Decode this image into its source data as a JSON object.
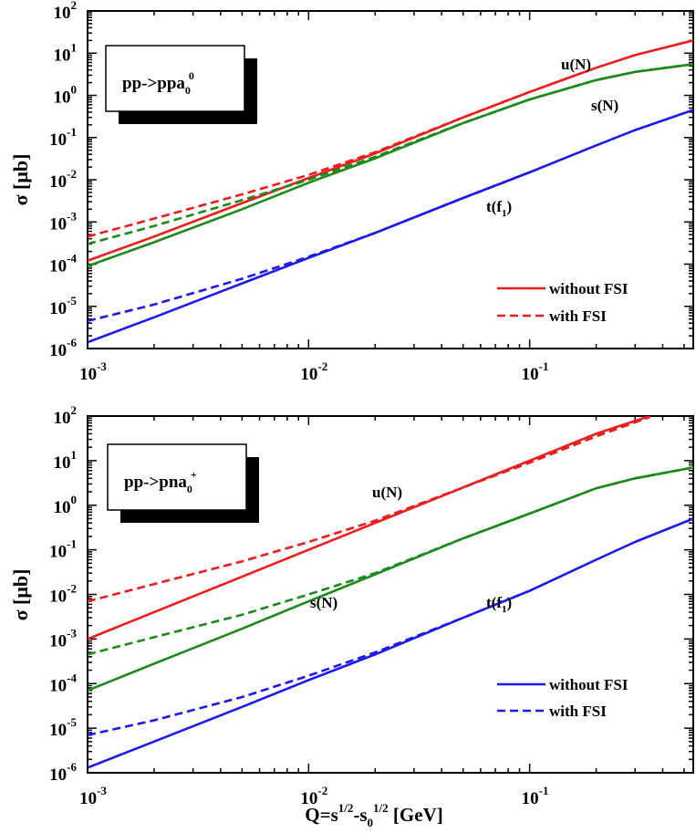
{
  "figure": {
    "x_axis_label_parts": [
      "Q=s",
      "1/2",
      "-s",
      "0",
      "1/2",
      " [GeV]"
    ]
  },
  "chart_data": [
    {
      "type": "line",
      "id": "top",
      "xscale": "log",
      "yscale": "log",
      "xlim": [
        0.001,
        0.55
      ],
      "ylim": [
        1e-06,
        100
      ],
      "xticks": [
        {
          "base": "10",
          "exp": "-3"
        },
        {
          "base": "10",
          "exp": "-2"
        },
        {
          "base": "10",
          "exp": "-1"
        }
      ],
      "yticks": [
        {
          "base": "10",
          "exp": "-6"
        },
        {
          "base": "10",
          "exp": "-5"
        },
        {
          "base": "10",
          "exp": "-4"
        },
        {
          "base": "10",
          "exp": "-3"
        },
        {
          "base": "10",
          "exp": "-2"
        },
        {
          "base": "10",
          "exp": "-1"
        },
        {
          "base": "10",
          "exp": "0"
        },
        {
          "base": "10",
          "exp": "1"
        },
        {
          "base": "10",
          "exp": "2"
        }
      ],
      "ylabel": "σ [μb]",
      "reaction_label": {
        "text": "pp->ppa",
        "sub": "0",
        "sup": "0"
      },
      "legend": {
        "position": "bottom-right",
        "entries": [
          {
            "label": "without FSI",
            "color": "#ee1c1c",
            "dash": "solid"
          },
          {
            "label": "with FSI",
            "color": "#ee1c1c",
            "dash": "dashed"
          }
        ]
      },
      "annotations": [
        {
          "text": "u(N)",
          "sub": ""
        },
        {
          "text": "s(N)",
          "sub": ""
        },
        {
          "text": "t(f",
          "sub": "1",
          "suffix": ")"
        }
      ],
      "series": [
        {
          "name": "u(N) without FSI",
          "color": "#ee1c1c",
          "dash": "solid",
          "x": [
            0.001,
            0.002,
            0.005,
            0.01,
            0.02,
            0.05,
            0.1,
            0.2,
            0.3,
            0.55
          ],
          "y": [
            0.00012,
            0.00045,
            0.0028,
            0.011,
            0.042,
            0.3,
            1.2,
            4.5,
            9,
            20
          ]
        },
        {
          "name": "u(N) with FSI",
          "color": "#ee1c1c",
          "dash": "dashed",
          "x": [
            0.001,
            0.002,
            0.005,
            0.01,
            0.02,
            0.05,
            0.1,
            0.2
          ],
          "y": [
            0.00045,
            0.0012,
            0.0045,
            0.013,
            0.045,
            0.3,
            1.2,
            4.5
          ]
        },
        {
          "name": "s(N) without FSI",
          "color": "#1a8a1a",
          "dash": "solid",
          "x": [
            0.001,
            0.002,
            0.005,
            0.01,
            0.02,
            0.05,
            0.1,
            0.2,
            0.3,
            0.55
          ],
          "y": [
            9e-05,
            0.00033,
            0.002,
            0.0085,
            0.032,
            0.22,
            0.8,
            2.3,
            3.6,
            5.5
          ]
        },
        {
          "name": "s(N) with FSI",
          "color": "#1a8a1a",
          "dash": "dashed",
          "x": [
            0.001,
            0.002,
            0.005,
            0.01,
            0.02,
            0.05,
            0.1,
            0.2,
            0.3,
            0.55
          ],
          "y": [
            0.0003,
            0.0008,
            0.0033,
            0.01,
            0.035,
            0.22,
            0.8,
            2.3,
            3.6,
            5.5
          ]
        },
        {
          "name": "t(f1) without FSI",
          "color": "#1a1aee",
          "dash": "solid",
          "x": [
            0.001,
            0.002,
            0.005,
            0.01,
            0.02,
            0.05,
            0.1,
            0.2,
            0.3,
            0.55
          ],
          "y": [
            1.4e-06,
            5.5e-06,
            3.5e-05,
            0.00014,
            0.00055,
            0.0037,
            0.015,
            0.065,
            0.15,
            0.45
          ]
        },
        {
          "name": "t(f1) with FSI",
          "color": "#1a1aee",
          "dash": "dashed",
          "x": [
            0.001,
            0.002,
            0.005,
            0.01,
            0.02,
            0.05,
            0.1
          ],
          "y": [
            4.5e-06,
            1.1e-05,
            4.5e-05,
            0.00015,
            0.00055,
            0.0037,
            0.015
          ]
        }
      ]
    },
    {
      "type": "line",
      "id": "bottom",
      "xscale": "log",
      "yscale": "log",
      "xlim": [
        0.001,
        0.55
      ],
      "ylim": [
        1e-06,
        100
      ],
      "xticks": [
        {
          "base": "10",
          "exp": "-3"
        },
        {
          "base": "10",
          "exp": "-2"
        },
        {
          "base": "10",
          "exp": "-1"
        }
      ],
      "yticks": [
        {
          "base": "10",
          "exp": "-6"
        },
        {
          "base": "10",
          "exp": "-5"
        },
        {
          "base": "10",
          "exp": "-4"
        },
        {
          "base": "10",
          "exp": "-3"
        },
        {
          "base": "10",
          "exp": "-2"
        },
        {
          "base": "10",
          "exp": "-1"
        },
        {
          "base": "10",
          "exp": "0"
        },
        {
          "base": "10",
          "exp": "1"
        },
        {
          "base": "10",
          "exp": "2"
        }
      ],
      "ylabel": "σ [μb]",
      "reaction_label": {
        "text": "pp->pna",
        "sub": "0",
        "sup": "+"
      },
      "legend": {
        "position": "bottom-right",
        "entries": [
          {
            "label": "without FSI",
            "color": "#1a1aee",
            "dash": "solid"
          },
          {
            "label": "with FSI",
            "color": "#1a1aee",
            "dash": "dashed"
          }
        ]
      },
      "annotations": [
        {
          "text": "u(N)",
          "sub": ""
        },
        {
          "text": "s(N)",
          "sub": ""
        },
        {
          "text": "t(f",
          "sub": "1",
          "suffix": ")"
        }
      ],
      "series": [
        {
          "name": "u(N) without FSI",
          "color": "#ee1c1c",
          "dash": "solid",
          "x": [
            0.001,
            0.002,
            0.005,
            0.01,
            0.02,
            0.05,
            0.1,
            0.2,
            0.35
          ],
          "y": [
            0.001,
            0.004,
            0.025,
            0.1,
            0.4,
            2.5,
            10,
            40,
            100
          ]
        },
        {
          "name": "u(N) with FSI",
          "color": "#ee1c1c",
          "dash": "dashed",
          "x": [
            0.001,
            0.002,
            0.005,
            0.01,
            0.02,
            0.05,
            0.1,
            0.2,
            0.35
          ],
          "y": [
            0.007,
            0.017,
            0.055,
            0.15,
            0.45,
            2.5,
            9,
            35,
            95
          ]
        },
        {
          "name": "s(N) without FSI",
          "color": "#1a8a1a",
          "dash": "solid",
          "x": [
            0.001,
            0.002,
            0.005,
            0.01,
            0.02,
            0.05,
            0.1,
            0.2,
            0.3,
            0.55
          ],
          "y": [
            7e-05,
            0.00028,
            0.0017,
            0.007,
            0.028,
            0.18,
            0.65,
            2.4,
            4,
            7
          ]
        },
        {
          "name": "s(N) with FSI",
          "color": "#1a8a1a",
          "dash": "dashed",
          "x": [
            0.001,
            0.002,
            0.005,
            0.01,
            0.02,
            0.05,
            0.1,
            0.2,
            0.3,
            0.55
          ],
          "y": [
            0.00045,
            0.0011,
            0.0035,
            0.01,
            0.03,
            0.18,
            0.65,
            2.4,
            4,
            7
          ]
        },
        {
          "name": "t(f1) without FSI",
          "color": "#1a1aee",
          "dash": "solid",
          "x": [
            0.001,
            0.002,
            0.005,
            0.01,
            0.02,
            0.05,
            0.1,
            0.2,
            0.3,
            0.55
          ],
          "y": [
            1.3e-06,
            5e-06,
            3e-05,
            0.00012,
            0.00045,
            0.003,
            0.012,
            0.06,
            0.15,
            0.5
          ]
        },
        {
          "name": "t(f1) with FSI",
          "color": "#1a1aee",
          "dash": "dashed",
          "x": [
            0.001,
            0.002,
            0.005,
            0.01,
            0.02,
            0.05,
            0.1
          ],
          "y": [
            7e-06,
            1.5e-05,
            5e-05,
            0.00015,
            0.0005,
            0.003,
            0.012
          ]
        }
      ]
    }
  ]
}
